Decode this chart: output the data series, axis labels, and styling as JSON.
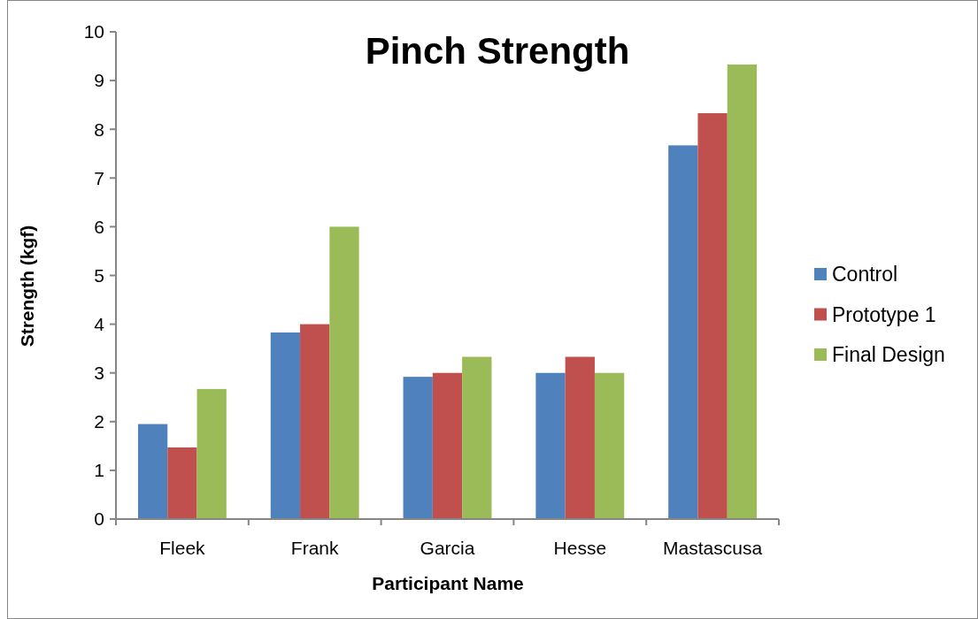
{
  "chart_data": {
    "type": "bar",
    "title": "Pinch Strength",
    "xlabel": "Participant Name",
    "ylabel": "Strength (kgf)",
    "categories": [
      "Fleek",
      "Frank",
      "Garcia",
      "Hesse",
      "Mastascusa"
    ],
    "series": [
      {
        "name": "Control",
        "color": "#4f81bd",
        "values": [
          1.95,
          3.83,
          2.92,
          3,
          7.67
        ]
      },
      {
        "name": "Prototype 1",
        "color": "#c0504d",
        "values": [
          1.47,
          4,
          3,
          3.33,
          8.33
        ]
      },
      {
        "name": "Final Design",
        "color": "#9bbb59",
        "values": [
          2.67,
          6,
          3.33,
          3,
          9.33
        ]
      }
    ],
    "ylim": [
      0,
      10
    ],
    "yticks": [
      0,
      1,
      2,
      3,
      4,
      5,
      6,
      7,
      8,
      9,
      10
    ],
    "grid": false,
    "legend": "right"
  }
}
